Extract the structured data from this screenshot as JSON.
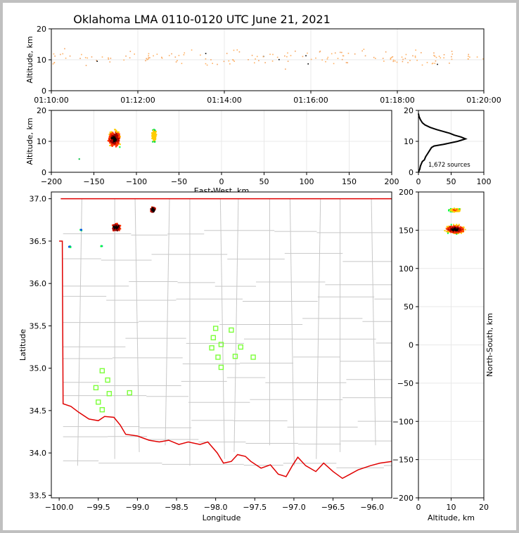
{
  "title": "Oklahoma LMA 0110-0120 UTC June 21, 2021",
  "colors": {
    "border_frame": "#c0c0c0",
    "state_line": "#e00000",
    "county_line": "#c8c8c8",
    "station": "#7cff3a",
    "source_scale": [
      "#0044ff",
      "#00c8ff",
      "#00ff40",
      "#ffcc00",
      "#ff3000",
      "#a00000",
      "#000000"
    ]
  },
  "chart_data": [
    {
      "id": "time_height",
      "type": "scatter",
      "title": "",
      "xlabel": "",
      "ylabel": "Altitude, km",
      "xlim": [
        "01:10:00",
        "01:20:00"
      ],
      "ylim": [
        0,
        20
      ],
      "xticks": [
        "01:10:00",
        "01:12:00",
        "01:14:00",
        "01:16:00",
        "01:18:00",
        "01:20:00"
      ],
      "yticks": [
        "0",
        "10",
        "20"
      ],
      "grid": true,
      "altitude_band_km": [
        4,
        15
      ],
      "core_altitude_km": 11
    },
    {
      "id": "ew_altitude",
      "type": "scatter",
      "xlabel": "East-West, km",
      "ylabel": "Altitude, km",
      "xlim": [
        -200,
        200
      ],
      "ylim": [
        0,
        20
      ],
      "xticks": [
        "−200",
        "−150",
        "−100",
        "−50",
        "0",
        "50",
        "100",
        "150",
        "200"
      ],
      "yticks": [
        "0",
        "10",
        "20"
      ],
      "grid": true,
      "clusters": [
        {
          "x_range": [
            -140,
            -112
          ],
          "z_range": [
            4,
            17
          ],
          "core_x": -127,
          "core_z": 11
        },
        {
          "x_range": [
            -84,
            -74
          ],
          "z_range": [
            5,
            16
          ],
          "core_x": -80,
          "core_z": 12
        }
      ]
    },
    {
      "id": "altitude_histogram",
      "type": "line",
      "xlim": [
        0,
        100
      ],
      "ylim": [
        0,
        20
      ],
      "xticks": [
        "0",
        "50",
        "100"
      ],
      "yticks": [
        "0",
        "10",
        "20"
      ],
      "annotation": "1,672 sources",
      "profile": [
        [
          0,
          0
        ],
        [
          2,
          1
        ],
        [
          3,
          2
        ],
        [
          5,
          3
        ],
        [
          6,
          3.5
        ],
        [
          9,
          4
        ],
        [
          11,
          5
        ],
        [
          14,
          6
        ],
        [
          17,
          7
        ],
        [
          20,
          8
        ],
        [
          24,
          8.5
        ],
        [
          38,
          9
        ],
        [
          60,
          10
        ],
        [
          72,
          10.8
        ],
        [
          65,
          11.4
        ],
        [
          55,
          12
        ],
        [
          48,
          12.6
        ],
        [
          38,
          13.2
        ],
        [
          28,
          13.8
        ],
        [
          18,
          14.5
        ],
        [
          10,
          15.3
        ],
        [
          6,
          16
        ],
        [
          3,
          17
        ],
        [
          1,
          18
        ],
        [
          0,
          19
        ]
      ]
    },
    {
      "id": "plan_view",
      "type": "scatter",
      "xlabel": "Longitude",
      "ylabel": "Latitude",
      "xlim": [
        -100.1,
        -95.75
      ],
      "ylim": [
        33.47,
        37.08
      ],
      "xticks": [
        "−100.0",
        "−99.5",
        "−99.0",
        "−98.5",
        "−98.0",
        "−97.5",
        "−97.0",
        "−96.5",
        "−96.0"
      ],
      "yticks": [
        "33.5",
        "34.0",
        "34.5",
        "35.0",
        "35.5",
        "36.0",
        "36.5",
        "37.0"
      ],
      "stations": [
        [
          -99.45,
          34.97
        ],
        [
          -99.38,
          34.86
        ],
        [
          -99.53,
          34.77
        ],
        [
          -99.36,
          34.7
        ],
        [
          -99.5,
          34.6
        ],
        [
          -99.45,
          34.51
        ],
        [
          -99.1,
          34.71
        ],
        [
          -98.0,
          35.47
        ],
        [
          -98.03,
          35.36
        ],
        [
          -97.93,
          35.28
        ],
        [
          -98.05,
          35.24
        ],
        [
          -97.97,
          35.13
        ],
        [
          -97.93,
          35.01
        ],
        [
          -97.8,
          35.45
        ],
        [
          -97.68,
          35.25
        ],
        [
          -97.75,
          35.14
        ],
        [
          -97.52,
          35.13
        ]
      ],
      "clusters": [
        {
          "lon_range": [
            -99.38,
            -99.16
          ],
          "lat_range": [
            36.55,
            36.73
          ],
          "core": [
            -99.28,
            36.67
          ]
        },
        {
          "lon_range": [
            -98.88,
            -98.75
          ],
          "lat_range": [
            36.8,
            36.94
          ],
          "core": [
            -98.81,
            36.88
          ]
        },
        {
          "lon_range": [
            -99.75,
            -99.7
          ],
          "lat_range": [
            36.62,
            36.66
          ],
          "core": [
            -99.73,
            36.64
          ]
        },
        {
          "lon_range": [
            -99.92,
            -99.82
          ],
          "lat_range": [
            36.41,
            36.46
          ],
          "core": [
            -99.87,
            36.44
          ]
        },
        {
          "lon_range": [
            -99.5,
            -99.44
          ],
          "lat_range": [
            36.44,
            36.47
          ],
          "core": [
            -99.47,
            36.45
          ]
        }
      ],
      "red_river": [
        [
          -100.0,
          36.5
        ],
        [
          -99.96,
          36.5
        ],
        [
          -99.95,
          34.58
        ],
        [
          -99.85,
          34.55
        ],
        [
          -99.75,
          34.48
        ],
        [
          -99.62,
          34.4
        ],
        [
          -99.5,
          34.38
        ],
        [
          -99.42,
          34.43
        ],
        [
          -99.3,
          34.42
        ],
        [
          -99.22,
          34.33
        ],
        [
          -99.15,
          34.22
        ],
        [
          -99.0,
          34.2
        ],
        [
          -98.85,
          34.15
        ],
        [
          -98.72,
          34.13
        ],
        [
          -98.6,
          34.15
        ],
        [
          -98.47,
          34.1
        ],
        [
          -98.35,
          34.13
        ],
        [
          -98.2,
          34.1
        ],
        [
          -98.1,
          34.13
        ],
        [
          -97.98,
          34.0
        ],
        [
          -97.9,
          33.88
        ],
        [
          -97.8,
          33.9
        ],
        [
          -97.72,
          33.98
        ],
        [
          -97.62,
          33.96
        ],
        [
          -97.55,
          33.9
        ],
        [
          -97.42,
          33.82
        ],
        [
          -97.3,
          33.86
        ],
        [
          -97.2,
          33.75
        ],
        [
          -97.1,
          33.72
        ],
        [
          -97.02,
          33.85
        ],
        [
          -96.95,
          33.95
        ],
        [
          -96.85,
          33.85
        ],
        [
          -96.72,
          33.78
        ],
        [
          -96.62,
          33.88
        ],
        [
          -96.5,
          33.78
        ],
        [
          -96.38,
          33.7
        ],
        [
          -96.28,
          33.75
        ],
        [
          -96.18,
          33.8
        ],
        [
          -96.02,
          33.85
        ],
        [
          -95.9,
          33.88
        ],
        [
          -95.75,
          33.9
        ]
      ],
      "north_border_lat": 37.0
    },
    {
      "id": "ns_altitude",
      "type": "scatter",
      "xlabel": "Altitude, km",
      "ylabel": "North-South, km",
      "xlim": [
        0,
        20
      ],
      "ylim": [
        -200,
        200
      ],
      "xticks": [
        "0",
        "10",
        "20"
      ],
      "yticks": [
        "−200",
        "−150",
        "−100",
        "−50",
        "0",
        "50",
        "100",
        "150",
        "200"
      ],
      "grid": true,
      "clusters": [
        {
          "z_range": [
            4,
            17
          ],
          "y_range": [
            140,
            160
          ],
          "core_z": 11,
          "core_y": 152
        },
        {
          "z_range": [
            7,
            16
          ],
          "y_range": [
            172,
            182
          ],
          "core_z": 11,
          "core_y": 177
        }
      ]
    }
  ]
}
